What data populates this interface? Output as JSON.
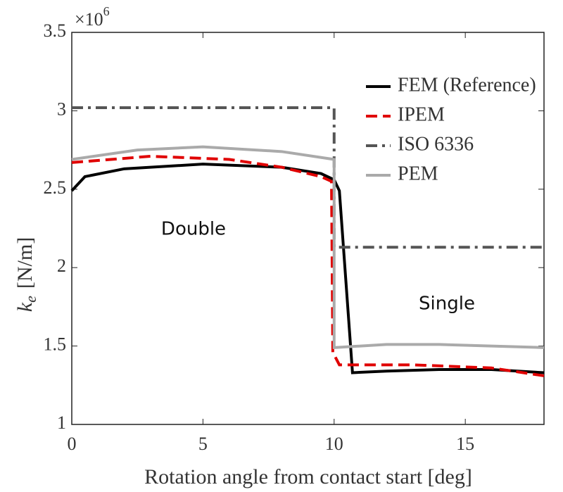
{
  "chart_data": {
    "type": "line",
    "xlabel": "Rotation angle from contact start [deg]",
    "ylabel": {
      "symbol": "k",
      "subscript": "e",
      "unit": "[N/m]"
    },
    "y_multiplier": {
      "base": "×10",
      "exponent": "6"
    },
    "xlim": [
      0,
      18
    ],
    "xticks": [
      0,
      5,
      10,
      15
    ],
    "ylim": [
      1,
      3.5
    ],
    "yticks": [
      1,
      1.5,
      2,
      2.5,
      3,
      3.5
    ],
    "legend": "top-right",
    "annotations": [
      "Double",
      "Single"
    ],
    "series": [
      {
        "name": "FEM (Reference)",
        "color": "#000000",
        "dash": "solid",
        "x": [
          0,
          0.5,
          2,
          5,
          8,
          9.5,
          10,
          10.2,
          10.7,
          12,
          14,
          16,
          18
        ],
        "values": [
          2.49,
          2.58,
          2.63,
          2.66,
          2.64,
          2.6,
          2.56,
          2.49,
          1.33,
          1.34,
          1.35,
          1.35,
          1.33
        ]
      },
      {
        "name": "IPEM",
        "color": "#e00000",
        "dash": "dashed",
        "x": [
          0,
          3,
          6,
          8,
          9.5,
          9.9,
          9.95,
          10.2,
          13,
          16,
          18
        ],
        "values": [
          2.67,
          2.71,
          2.69,
          2.64,
          2.58,
          2.55,
          1.46,
          1.38,
          1.38,
          1.36,
          1.31
        ]
      },
      {
        "name": "ISO 6336",
        "color": "#555555",
        "dash": "dashdot",
        "x": [
          0,
          10,
          10,
          18
        ],
        "values": [
          3.02,
          3.02,
          2.13,
          2.13
        ]
      },
      {
        "name": "PEM",
        "color": "#aaaaaa",
        "dash": "solid",
        "x": [
          0,
          2.5,
          5,
          8,
          10,
          10,
          12,
          14,
          16,
          18
        ],
        "values": [
          2.69,
          2.75,
          2.77,
          2.74,
          2.69,
          1.49,
          1.51,
          1.51,
          1.5,
          1.49
        ]
      }
    ]
  }
}
